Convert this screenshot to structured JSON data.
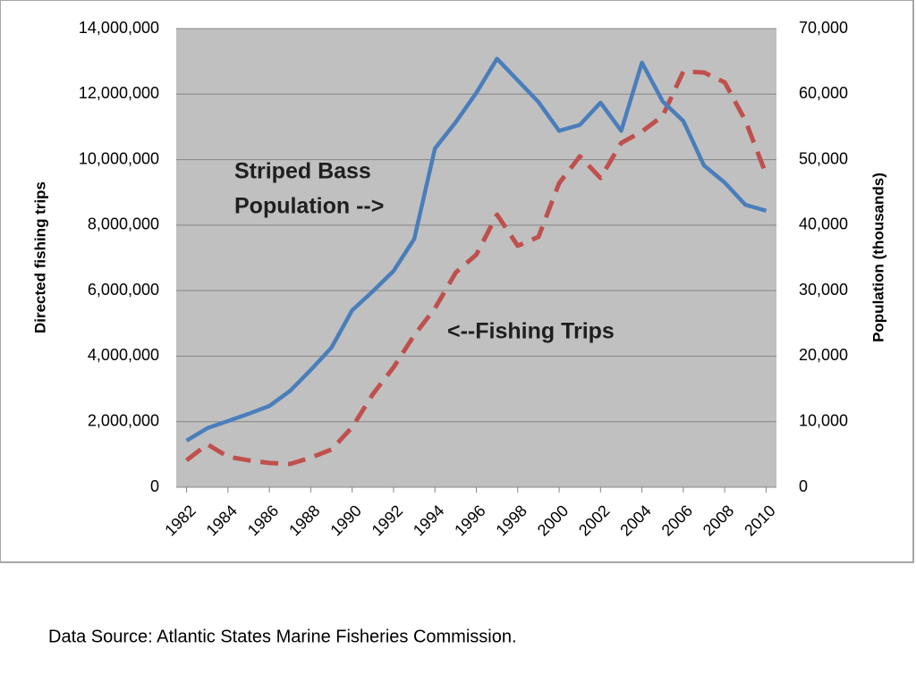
{
  "chart_data": {
    "type": "line",
    "y_label": "Directed fishing trips",
    "y2_label": "Population (thousands)",
    "x": [
      1982,
      1983,
      1984,
      1985,
      1986,
      1987,
      1988,
      1989,
      1990,
      1991,
      1992,
      1993,
      1994,
      1995,
      1996,
      1997,
      1998,
      1999,
      2000,
      2001,
      2002,
      2003,
      2004,
      2005,
      2006,
      2007,
      2008,
      2009,
      2010
    ],
    "xlim": [
      1981.5,
      2010.5
    ],
    "xticks": [
      1982,
      1984,
      1986,
      1988,
      1990,
      1992,
      1994,
      1996,
      1998,
      2000,
      2002,
      2004,
      2006,
      2008,
      2010
    ],
    "ylim": [
      0,
      14000000
    ],
    "yticks": [
      0,
      {
        "value": 2000000,
        "label": "2,000,000"
      },
      {
        "value": 4000000,
        "label": "4,000,000"
      },
      {
        "value": 6000000,
        "label": "6,000,000"
      },
      {
        "value": 8000000,
        "label": "8,000,000"
      },
      {
        "value": 10000000,
        "label": "10,000,000"
      },
      {
        "value": 12000000,
        "label": "12,000,000"
      },
      {
        "value": 14000000,
        "label": "14,000,000"
      }
    ],
    "y2lim": [
      0,
      70000
    ],
    "y2ticks": [
      0,
      {
        "value": 10000,
        "label": "10,000"
      },
      {
        "value": 20000,
        "label": "20,000"
      },
      {
        "value": 30000,
        "label": "30,000"
      },
      {
        "value": 40000,
        "label": "40,000"
      },
      {
        "value": 50000,
        "label": "50,000"
      },
      {
        "value": 60000,
        "label": "60,000"
      },
      {
        "value": 70000,
        "label": "70,000"
      }
    ],
    "grid": true,
    "series": [
      {
        "color": "#c0504d",
        "dashed": true,
        "values": [
          820000,
          1310000,
          930000,
          820000,
          740000,
          710000,
          900000,
          1150000,
          1830000,
          2840000,
          3660000,
          4640000,
          5460000,
          6550000,
          7100000,
          8320000,
          7370000,
          7640000,
          9280000,
          10100000,
          9440000,
          10510000,
          10860000,
          11330000,
          12690000,
          12660000,
          12360000,
          11190000,
          9550000
        ]
      },
      {
        "color": "#4a7ebb",
        "dashed": false,
        "axis": "y2",
        "values": [
          7100,
          9000,
          10100,
          11200,
          12400,
          14700,
          17900,
          21300,
          27000,
          29900,
          33000,
          37900,
          51700,
          55700,
          60200,
          65400,
          62100,
          58800,
          54400,
          55300,
          58700,
          54400,
          64800,
          58900,
          55900,
          49100,
          46500,
          43100,
          42200
        ]
      }
    ],
    "annotations": [
      {
        "lines": [
          "Striped Bass",
          "Population -->"
        ]
      },
      {
        "lines": [
          "<--Fishing Trips"
        ]
      }
    ]
  },
  "footer": "Data Source: Atlantic States Marine Fisheries Commission."
}
